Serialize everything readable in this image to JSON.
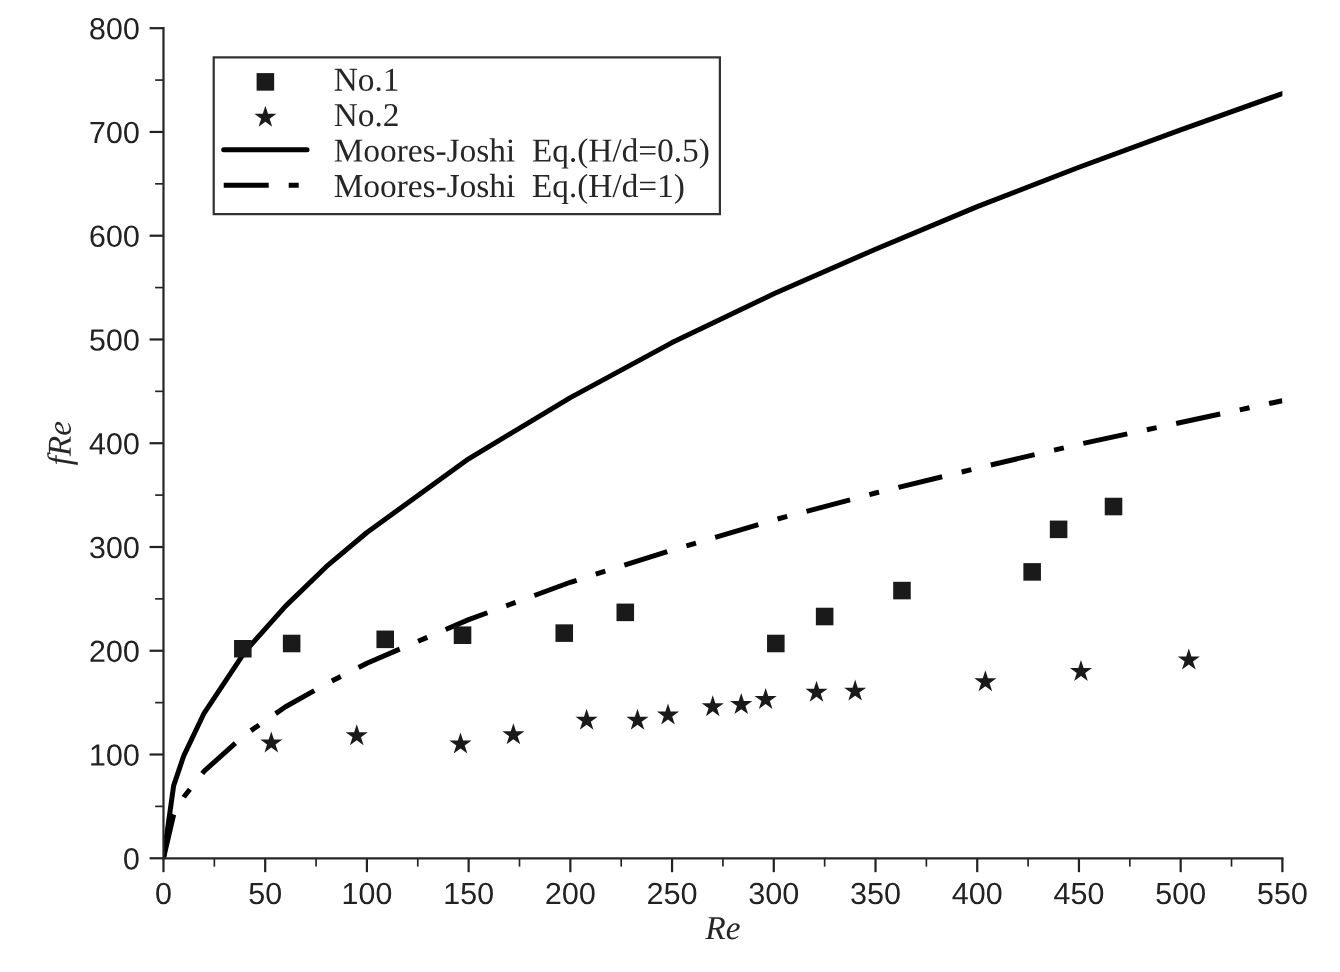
{
  "chart_data": {
    "type": "scatter",
    "xlabel": "Re",
    "ylabel": "fRe",
    "xlim": [
      0,
      550
    ],
    "xticks": [
      0,
      50,
      100,
      150,
      200,
      250,
      300,
      350,
      400,
      450,
      500,
      550
    ],
    "ylim": [
      0,
      800
    ],
    "yticks": [
      0,
      100,
      200,
      300,
      400,
      500,
      600,
      700,
      800
    ],
    "grid": false,
    "legend": "top left",
    "series": [
      {
        "name": "No.1",
        "marker": "square",
        "color": "#1a1a1a",
        "x": [
          39,
          63,
          109,
          147,
          197,
          227,
          301,
          325,
          363,
          427,
          440,
          467
        ],
        "values": [
          202,
          207,
          211,
          215,
          217,
          237,
          207,
          233,
          258,
          276,
          317,
          339
        ]
      },
      {
        "name": "No.2",
        "marker": "star",
        "color": "#1a1a1a",
        "x": [
          53,
          95,
          146,
          172,
          208,
          233,
          248,
          270,
          284,
          296,
          321,
          340,
          404,
          451,
          504
        ],
        "values": [
          111,
          118,
          110,
          119,
          133,
          133,
          138,
          146,
          148,
          153,
          160,
          161,
          170,
          180,
          191
        ]
      },
      {
        "name": "Moores-Joshi  Eq.(H/d=0.5)",
        "type": "line",
        "line_style": "solid",
        "color": "#000000",
        "x": [
          0,
          5,
          10,
          20,
          40,
          60,
          80,
          100,
          150,
          200,
          250,
          300,
          350,
          400,
          450,
          500,
          550
        ],
        "values": [
          0,
          70,
          99,
          140,
          199,
          243,
          281,
          314,
          385,
          444,
          497,
          544,
          587,
          628,
          666,
          702,
          737
        ]
      },
      {
        "name": "Moores-Joshi  Eq.(H/d=1)",
        "type": "line",
        "line_style": "dashdot",
        "color": "#000000",
        "x": [
          0,
          5,
          10,
          20,
          40,
          60,
          80,
          100,
          150,
          200,
          250,
          300,
          350,
          400,
          450,
          500,
          550
        ],
        "values": [
          0,
          42,
          59,
          84,
          119,
          146,
          168,
          188,
          230,
          266,
          297,
          326,
          352,
          376,
          399,
          420,
          441
        ]
      }
    ]
  }
}
